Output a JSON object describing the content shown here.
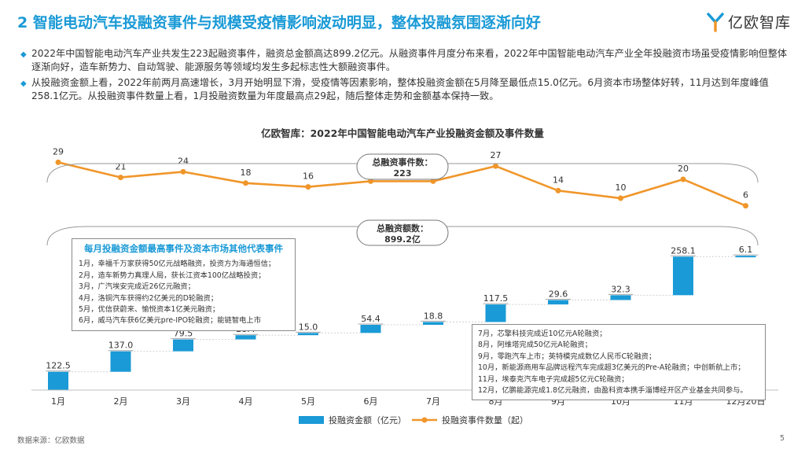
{
  "header": {
    "title": "2 智能电动汽车投融资事件与规模受疫情影响波动明显，整体投融氛围逐渐向好",
    "logo_text": "亿欧智库"
  },
  "bullets": [
    "2022年中国智能电动汽车产业共发生223起融资事件，融资总金额高达899.2亿元。从融资事件月度分布来看，2022年中国智能电动汽车产业全年投融资市场虽受疫情影响但整体逐渐向好，造车新势力、自动驾驶、能源服务等领域均发生多起标志性大额融资事件。",
    "从投融资金额上看，2022年前两月高速增长，3月开始明显下滑，受疫情等因素影响，整体投融资金额在5月降至最低点15.0亿元。6月资本市场整体好转，11月达到年度峰值258.1亿元。从投融资事件数量上看，1月投融资数量为年度最高点29起，随后整体走势和金额基本保持一致。"
  ],
  "chart_data": {
    "type": "waterfall-bar-line",
    "title": "亿欧智库：2022年中国智能电动汽车产业投融资金额及事件数量",
    "categories": [
      "1月",
      "2月",
      "3月",
      "4月",
      "5月",
      "6月",
      "7月",
      "8月",
      "9月",
      "10月",
      "11月",
      "12月20日"
    ],
    "series": [
      {
        "name": "投融资金额（亿元）",
        "kind": "waterfall-bar",
        "color": "#1a9ad6",
        "values": [
          122.5,
          137.0,
          79.5,
          28.4,
          15.0,
          54.4,
          18.8,
          117.5,
          29.6,
          32.3,
          258.1,
          6.1
        ],
        "labels": [
          "122.5",
          "137.0",
          "79.5",
          "28.4",
          "15.0",
          "54.4",
          "18.8",
          "117.5",
          "29.6",
          "32.3",
          "258.1",
          "6.1"
        ]
      },
      {
        "name": "投融资事件数量（起）",
        "kind": "line",
        "color": "#f0962a",
        "values": [
          29,
          21,
          24,
          18,
          16,
          19,
          19,
          27,
          14,
          10,
          20,
          6
        ],
        "labels": [
          "29",
          "21",
          "24",
          "18",
          "16",
          "19",
          "19",
          "27",
          "14",
          "10",
          "20",
          "6"
        ]
      }
    ],
    "totals": {
      "events_label": "总融资事件数：",
      "events_value": "223",
      "amount_label": "总融资额数：",
      "amount_value": "899.2亿"
    },
    "legend": "bottom-center"
  },
  "notes_left": {
    "title": "每月投融资金额最高事件及资本市场其他代表事件",
    "lines": [
      "1月，幸福千万家获得50亿元战略融资，投资方为海通恒信；",
      "2月，造车新势力真理人局，获长江资本100亿战略投资；",
      "3月，广汽埃安完成近26亿元融资；",
      "4月，洛铜汽车获得约2亿美元的D轮融资；",
      "5月，优信获蔚来、愉悦资本1亿美元融资；",
      "6月，威马汽车获6亿美元pre-IPO轮融资；能链智电上市"
    ]
  },
  "notes_right": {
    "lines": [
      "7月，芯擎科技完成近10亿元A轮融资；",
      "8月，阿维塔完成50亿元A轮融资；",
      "9月，零跑汽车上市；英特模完成数亿人民币C轮融资；",
      "10月，新能源商用车品牌远程汽车完成超3亿美元的Pre-A轮融资；中创新航上市；",
      "11月，埃泰克汽车电子完成超5亿元C轮融资；",
      "12月，亿鹏能源完成1.8亿元融资，由盈科资本携手淄博经开区产业基金共同参与。"
    ]
  },
  "footer": {
    "source": "数据来源：亿欧数据",
    "page": "5"
  },
  "colors": {
    "accent": "#1a9ad6",
    "line": "#f0962a"
  }
}
